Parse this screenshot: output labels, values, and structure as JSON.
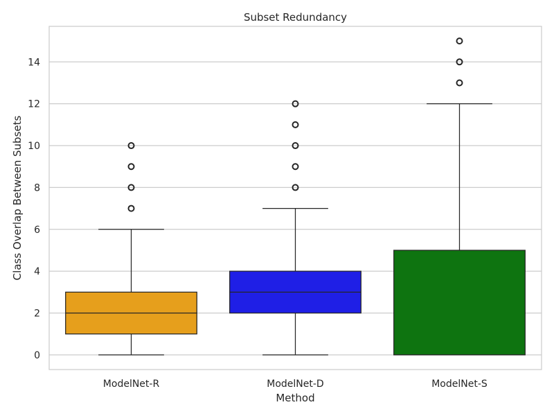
{
  "chart_data": {
    "type": "box",
    "title": "Subset Redundancy",
    "xlabel": "Method",
    "ylabel": "Class Overlap Between Subsets",
    "ylim": [
      -0.7,
      15.7
    ],
    "yticks": [
      0,
      2,
      4,
      6,
      8,
      10,
      12,
      14
    ],
    "grid": true,
    "categories": [
      "ModelNet-R",
      "ModelNet-D",
      "ModelNet-S"
    ],
    "boxes": [
      {
        "category": "ModelNet-R",
        "color": "#E69F1C",
        "whisker_low": 0,
        "q1": 1,
        "median": 2,
        "q3": 3,
        "whisker_high": 6,
        "outliers": [
          7,
          8,
          9,
          10
        ]
      },
      {
        "category": "ModelNet-D",
        "color": "#1F1FE6",
        "whisker_low": 0,
        "q1": 2,
        "median": 3,
        "q3": 4,
        "whisker_high": 7,
        "outliers": [
          8,
          9,
          10,
          11,
          12
        ]
      },
      {
        "category": "ModelNet-S",
        "color": "#0E7410",
        "whisker_low": 0,
        "q1": 0,
        "median": 0,
        "q3": 5,
        "whisker_high": 12,
        "outliers": [
          13,
          14,
          15
        ]
      }
    ]
  }
}
